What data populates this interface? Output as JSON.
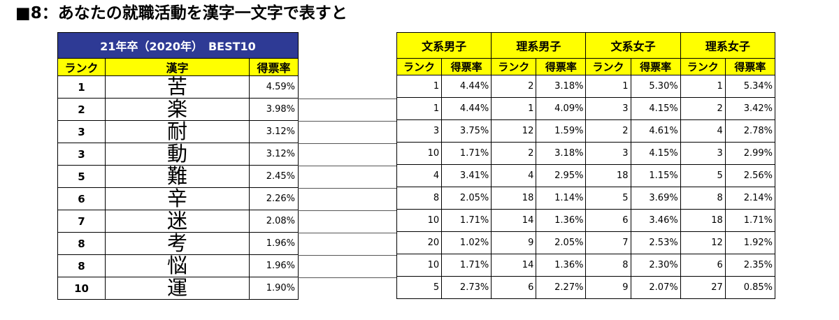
{
  "title": "■8：あなたの就職活動を漢字一文字で表すと",
  "left_table": {
    "banner": "21年卒（2020年）　BEST10",
    "headers": {
      "rank": "ランク",
      "kanji": "漢字",
      "rate": "得票率"
    },
    "rows": [
      {
        "rank": "1",
        "kanji": "苦",
        "rate": "4.59%"
      },
      {
        "rank": "2",
        "kanji": "楽",
        "rate": "3.98%"
      },
      {
        "rank": "3",
        "kanji": "耐",
        "rate": "3.12%"
      },
      {
        "rank": "3",
        "kanji": "動",
        "rate": "3.12%"
      },
      {
        "rank": "5",
        "kanji": "難",
        "rate": "2.45%"
      },
      {
        "rank": "6",
        "kanji": "辛",
        "rate": "2.26%"
      },
      {
        "rank": "7",
        "kanji": "迷",
        "rate": "2.08%"
      },
      {
        "rank": "8",
        "kanji": "考",
        "rate": "1.96%"
      },
      {
        "rank": "8",
        "kanji": "悩",
        "rate": "1.96%"
      },
      {
        "rank": "10",
        "kanji": "運",
        "rate": "1.90%"
      }
    ]
  },
  "right_table": {
    "groups": [
      "文系男子",
      "理系男子",
      "文系女子",
      "理系女子"
    ],
    "sub_headers": {
      "rank": "ランク",
      "rate": "得票率"
    },
    "rows": [
      [
        [
          "1",
          "4.44%"
        ],
        [
          "2",
          "3.18%"
        ],
        [
          "1",
          "5.30%"
        ],
        [
          "1",
          "5.34%"
        ]
      ],
      [
        [
          "1",
          "4.44%"
        ],
        [
          "1",
          "4.09%"
        ],
        [
          "3",
          "4.15%"
        ],
        [
          "2",
          "3.42%"
        ]
      ],
      [
        [
          "3",
          "3.75%"
        ],
        [
          "12",
          "1.59%"
        ],
        [
          "2",
          "4.61%"
        ],
        [
          "4",
          "2.78%"
        ]
      ],
      [
        [
          "10",
          "1.71%"
        ],
        [
          "2",
          "3.18%"
        ],
        [
          "3",
          "4.15%"
        ],
        [
          "3",
          "2.99%"
        ]
      ],
      [
        [
          "4",
          "3.41%"
        ],
        [
          "4",
          "2.95%"
        ],
        [
          "18",
          "1.15%"
        ],
        [
          "5",
          "2.56%"
        ]
      ],
      [
        [
          "8",
          "2.05%"
        ],
        [
          "18",
          "1.14%"
        ],
        [
          "5",
          "3.69%"
        ],
        [
          "8",
          "2.14%"
        ]
      ],
      [
        [
          "10",
          "1.71%"
        ],
        [
          "14",
          "1.36%"
        ],
        [
          "6",
          "3.46%"
        ],
        [
          "18",
          "1.71%"
        ]
      ],
      [
        [
          "20",
          "1.02%"
        ],
        [
          "9",
          "2.05%"
        ],
        [
          "7",
          "2.53%"
        ],
        [
          "12",
          "1.92%"
        ]
      ],
      [
        [
          "10",
          "1.71%"
        ],
        [
          "14",
          "1.36%"
        ],
        [
          "8",
          "2.30%"
        ],
        [
          "6",
          "2.35%"
        ]
      ],
      [
        [
          "5",
          "2.73%"
        ],
        [
          "6",
          "2.27%"
        ],
        [
          "9",
          "2.07%"
        ],
        [
          "27",
          "0.85%"
        ]
      ]
    ]
  }
}
